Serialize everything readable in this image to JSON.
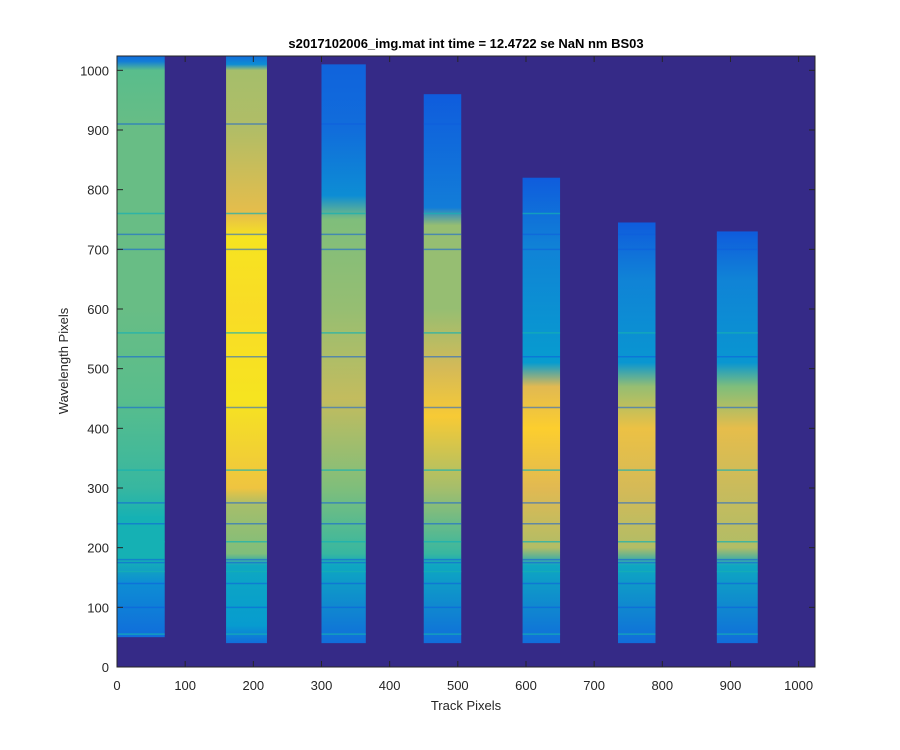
{
  "colors": {
    "background": "#352a87",
    "axes": "#262626",
    "colormap": "parula"
  },
  "chart_data": {
    "type": "heatmap",
    "title": "s2017102006_img.mat int time = 12.4722 se  NaN nm BS03",
    "xlabel": "Track Pixels",
    "ylabel": "Wavelength Pixels",
    "xlim": [
      0,
      1024
    ],
    "ylim": [
      0,
      1024
    ],
    "x_ticks": [
      0,
      100,
      200,
      300,
      400,
      500,
      600,
      700,
      800,
      900,
      1000
    ],
    "y_ticks": [
      0,
      100,
      200,
      300,
      400,
      500,
      600,
      700,
      800,
      900,
      1000
    ],
    "color_scale": [
      0,
      1
    ],
    "bands": [
      {
        "name": "",
        "x": [
          0,
          70
        ],
        "y": [
          50,
          1024
        ],
        "profile": [
          [
            50,
            0.15
          ],
          [
            140,
            0.25
          ],
          [
            180,
            0.4
          ],
          [
            250,
            0.4
          ],
          [
            300,
            0.45
          ],
          [
            450,
            0.5
          ],
          [
            600,
            0.52
          ],
          [
            800,
            0.52
          ],
          [
            900,
            0.52
          ],
          [
            1000,
            0.5
          ],
          [
            1015,
            0.2
          ],
          [
            1024,
            0.15
          ]
        ]
      },
      {
        "name": "",
        "x": [
          160,
          220
        ],
        "y": [
          40,
          1024
        ],
        "profile": [
          [
            40,
            0.15
          ],
          [
            70,
            0.3
          ],
          [
            170,
            0.35
          ],
          [
            190,
            0.55
          ],
          [
            270,
            0.6
          ],
          [
            300,
            0.75
          ],
          [
            450,
            0.88
          ],
          [
            600,
            0.85
          ],
          [
            720,
            0.88
          ],
          [
            760,
            0.72
          ],
          [
            900,
            0.62
          ],
          [
            1000,
            0.6
          ],
          [
            1010,
            0.25
          ],
          [
            1024,
            0.15
          ]
        ]
      },
      {
        "name": "",
        "x": [
          300,
          365
        ],
        "y": [
          40,
          1010
        ],
        "profile": [
          [
            40,
            0.15
          ],
          [
            170,
            0.35
          ],
          [
            190,
            0.45
          ],
          [
            300,
            0.55
          ],
          [
            450,
            0.65
          ],
          [
            600,
            0.58
          ],
          [
            750,
            0.55
          ],
          [
            790,
            0.25
          ],
          [
            900,
            0.15
          ],
          [
            1010,
            0.12
          ]
        ]
      },
      {
        "name": "",
        "x": [
          450,
          505
        ],
        "y": [
          40,
          960
        ],
        "profile": [
          [
            40,
            0.15
          ],
          [
            170,
            0.35
          ],
          [
            190,
            0.45
          ],
          [
            300,
            0.6
          ],
          [
            420,
            0.78
          ],
          [
            500,
            0.68
          ],
          [
            600,
            0.58
          ],
          [
            740,
            0.58
          ],
          [
            770,
            0.2
          ],
          [
            960,
            0.1
          ]
        ]
      },
      {
        "name": "",
        "x": [
          595,
          650
        ],
        "y": [
          40,
          820
        ],
        "profile": [
          [
            40,
            0.15
          ],
          [
            170,
            0.35
          ],
          [
            200,
            0.62
          ],
          [
            300,
            0.7
          ],
          [
            400,
            0.8
          ],
          [
            470,
            0.7
          ],
          [
            510,
            0.3
          ],
          [
            700,
            0.22
          ],
          [
            820,
            0.1
          ]
        ]
      },
      {
        "name": "",
        "x": [
          735,
          790
        ],
        "y": [
          40,
          745
        ],
        "profile": [
          [
            40,
            0.15
          ],
          [
            170,
            0.35
          ],
          [
            200,
            0.62
          ],
          [
            300,
            0.68
          ],
          [
            400,
            0.74
          ],
          [
            470,
            0.58
          ],
          [
            510,
            0.28
          ],
          [
            650,
            0.22
          ],
          [
            745,
            0.1
          ]
        ]
      },
      {
        "name": "",
        "x": [
          880,
          940
        ],
        "y": [
          40,
          730
        ],
        "profile": [
          [
            40,
            0.15
          ],
          [
            170,
            0.35
          ],
          [
            200,
            0.62
          ],
          [
            300,
            0.66
          ],
          [
            400,
            0.72
          ],
          [
            470,
            0.55
          ],
          [
            510,
            0.28
          ],
          [
            650,
            0.22
          ],
          [
            730,
            0.1
          ]
        ]
      }
    ],
    "absorption_lines": [
      55,
      100,
      140,
      160,
      175,
      180,
      210,
      240,
      275,
      330,
      435,
      520,
      560,
      700,
      725,
      760,
      910
    ]
  }
}
